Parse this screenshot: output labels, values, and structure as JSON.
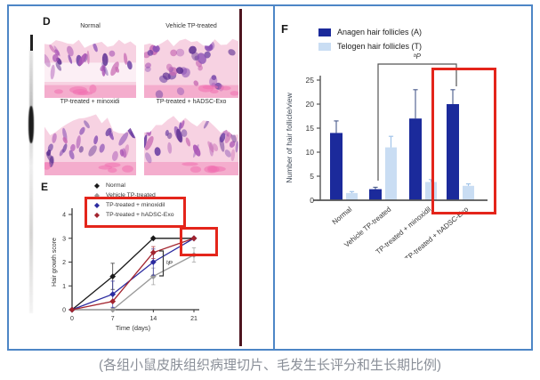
{
  "caption": "(各组小鼠皮肤组织病理切片、毛发生长评分和生长期比例)",
  "colors": {
    "selection_border_blue": "#4d86c6",
    "page_rule_maroon": "#4e1520",
    "highlight_red": "#e4251b",
    "anagen_navy": "#1b2a9b",
    "telogen_light_blue": "#c9ddf3",
    "series_normal_black": "#1a1a1a",
    "series_vehicle_gray": "#9a9a9a",
    "series_minoxidil_blue": "#2b2ba0",
    "series_hadsc_red": "#a3242e"
  },
  "panel_d": {
    "label": "D",
    "images": [
      {
        "label": "Normal"
      },
      {
        "label": "Vehicle TP-treated"
      },
      {
        "label": "TP-treated + minoxidi"
      },
      {
        "label": "TP-treated + hADSC-Exo"
      }
    ]
  },
  "panel_e": {
    "label": "E"
  },
  "panel_f": {
    "label": "F"
  },
  "chart_data": [
    {
      "type": "line",
      "panel": "E",
      "title": "",
      "xlabel": "Time (days)",
      "ylabel": "Hair growth score",
      "x": [
        0,
        7,
        14,
        21
      ],
      "xticks": [
        0,
        7,
        14,
        21
      ],
      "yticks": [
        0,
        1,
        2,
        3,
        4
      ],
      "xlim": [
        0,
        21
      ],
      "ylim": [
        0,
        4
      ],
      "grid": false,
      "legend_position": "top-left",
      "series": [
        {
          "name": "Normal",
          "color": "#1a1a1a",
          "values": [
            0,
            1.4,
            3.0,
            3.0
          ],
          "errors": [
            0,
            0.55,
            0,
            0
          ]
        },
        {
          "name": "Vehicle TP-treated",
          "color": "#9a9a9a",
          "values": [
            0,
            0,
            1.4,
            2.3
          ],
          "errors": [
            0,
            0,
            0.35,
            0.3
          ]
        },
        {
          "name": "TP-treated + minoxidil",
          "color": "#2b2ba0",
          "values": [
            0,
            0.65,
            2.0,
            3.0
          ],
          "errors": [
            0,
            0.55,
            0.55,
            0
          ]
        },
        {
          "name": "TP-treated + hADSC-Exo",
          "color": "#a3242e",
          "values": [
            0,
            0.35,
            2.4,
            3.0
          ],
          "errors": [
            0,
            0,
            0.25,
            0
          ]
        }
      ],
      "significance": {
        "label": "ᵇP",
        "between": "treated groups vs Vehicle TP-treated at day 14"
      },
      "highlights": [
        "red box around minoxidil and hADSC-Exo legend entries",
        "red box around day-21 data points"
      ]
    },
    {
      "type": "bar",
      "panel": "F",
      "title": "",
      "xlabel": "",
      "ylabel": "Number of hair follicle/view",
      "categories": [
        "Normal",
        "Vehicle TP-treated",
        "TP-treated + minoxidil",
        "TP-treated + hADSC-Exo"
      ],
      "yticks": [
        0,
        5,
        10,
        15,
        20,
        25
      ],
      "ylim": [
        0,
        25
      ],
      "grid": false,
      "legend_position": "top",
      "series": [
        {
          "name": "Anagen hair follicles (A)",
          "color": "#1b2a9b",
          "values": [
            14,
            2.3,
            17,
            20
          ],
          "errors": [
            2.5,
            0.4,
            6,
            3
          ]
        },
        {
          "name": "Telogen hair follicles (T)",
          "color": "#c9ddf3",
          "values": [
            1.5,
            11,
            3.8,
            3.0
          ],
          "errors": [
            0.3,
            2.3,
            0.5,
            0.4
          ]
        }
      ],
      "significance": {
        "label": "ᵇP",
        "between": "Vehicle TP-treated vs TP-treated + hADSC-Exo"
      },
      "highlights": [
        "red box around TP-treated + hADSC-Exo group"
      ]
    }
  ]
}
